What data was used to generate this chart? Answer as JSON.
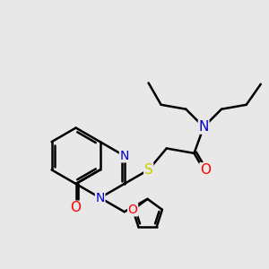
{
  "bg_color": "#e8e8e8",
  "atom_colors": {
    "C": "#000000",
    "N": "#0000cc",
    "O": "#ff0000",
    "S": "#cccc00"
  },
  "bond_color": "#000000",
  "bond_width": 1.8,
  "font_size": 10,
  "figsize": [
    3.0,
    3.0
  ],
  "dpi": 100
}
